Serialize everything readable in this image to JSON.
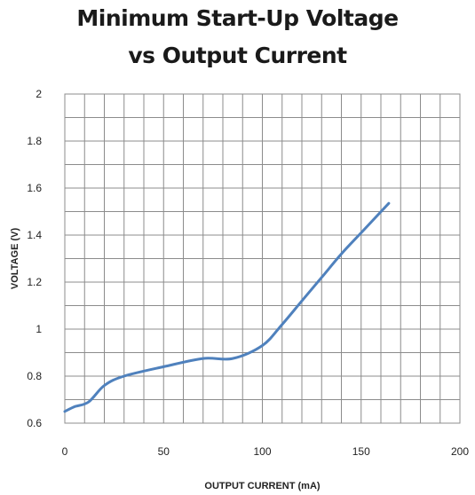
{
  "chart_data": {
    "type": "line",
    "title_line1": "Minimum Start-Up Voltage",
    "title_line2": "vs Output Current",
    "xlabel": "OUTPUT CURRENT (mA)",
    "ylabel": "VOLTAGE  (V)",
    "xlim": [
      0,
      200
    ],
    "ylim": [
      0.6,
      2.0
    ],
    "x_ticks": [
      0,
      50,
      100,
      150,
      200
    ],
    "x_tick_labels": [
      "0",
      "50",
      "100",
      "150",
      "200"
    ],
    "y_ticks": [
      0.6,
      0.8,
      1.0,
      1.2,
      1.4,
      1.6,
      1.8,
      2.0
    ],
    "y_tick_labels": [
      "0.6",
      "0.8",
      "1",
      "1.2",
      "1.4",
      "1.6",
      "1.8",
      "2"
    ],
    "x_minor_step": 10,
    "y_minor_step": 0.1,
    "grid": true,
    "line_color": "#4f81bd",
    "series": [
      {
        "x": [
          0,
          5,
          12,
          20,
          30,
          50,
          70,
          85,
          100,
          110,
          120,
          130,
          140,
          150,
          164
        ],
        "y": [
          0.65,
          0.67,
          0.69,
          0.76,
          0.8,
          0.84,
          0.875,
          0.875,
          0.93,
          1.02,
          1.12,
          1.22,
          1.32,
          1.41,
          1.535
        ]
      }
    ]
  }
}
